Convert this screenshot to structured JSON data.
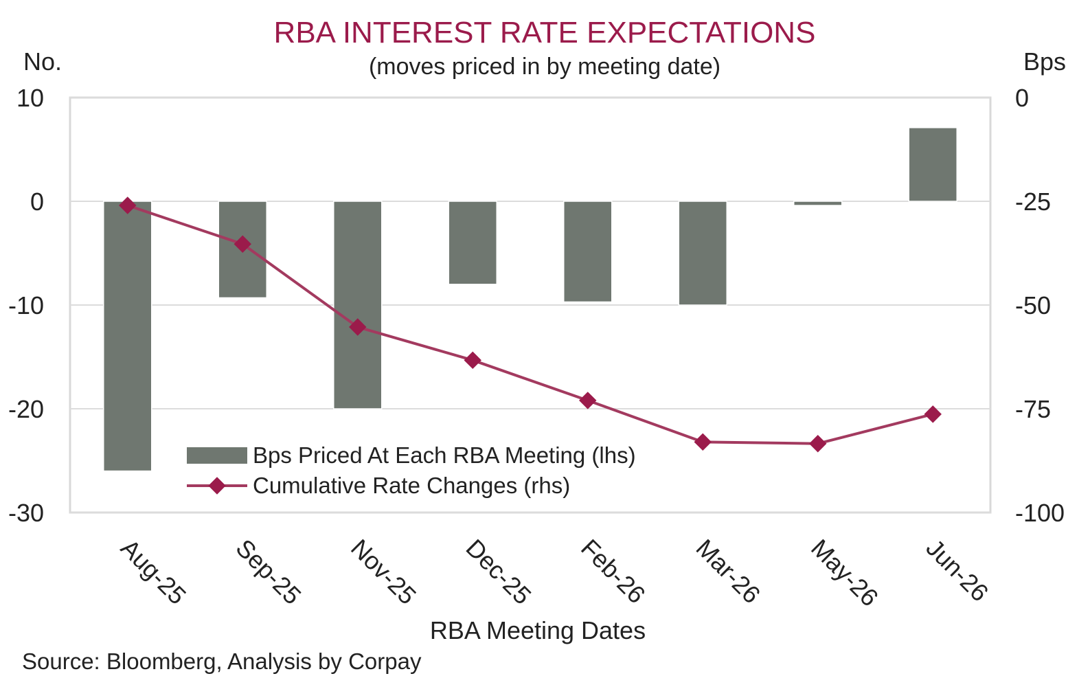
{
  "chart_data": {
    "type": "bar",
    "title": "RBA INTEREST RATE EXPECTATIONS",
    "subtitle": "(moves priced in by meeting date)",
    "y_left_unit": "No.",
    "y_right_unit": "Bps",
    "xlabel": "RBA Meeting Dates",
    "source": "Source: Bloomberg, Analysis by Corpay",
    "categories": [
      "Aug-25",
      "Sep-25",
      "Nov-25",
      "Dec-25",
      "Feb-26",
      "Mar-26",
      "May-26",
      "Jun-26"
    ],
    "ylim_left": [
      -30,
      10
    ],
    "ylim_right": [
      -100,
      0
    ],
    "yticks_left": [
      "10",
      "0",
      "-10",
      "-20",
      "-30"
    ],
    "yticks_right": [
      "0",
      "-25",
      "-50",
      "-75",
      "-100"
    ],
    "grid": true,
    "legend_position": "bottom-left",
    "series": [
      {
        "name": "Bps Priced At Each RBA Meeting (lhs)",
        "type": "bar",
        "axis": "left",
        "color": "#6f7770",
        "values": [
          -26,
          -9.3,
          -20,
          -8,
          -9.7,
          -10,
          -0.4,
          7.1
        ]
      },
      {
        "name": "Cumulative Rate Changes (rhs)",
        "type": "line",
        "axis": "right",
        "color": "#a33a5f",
        "marker": "diamond",
        "marker_color": "#9b1b4b",
        "values": [
          -26,
          -35.3,
          -55.3,
          -63.3,
          -73,
          -83,
          -83.4,
          -76.3
        ]
      }
    ]
  }
}
